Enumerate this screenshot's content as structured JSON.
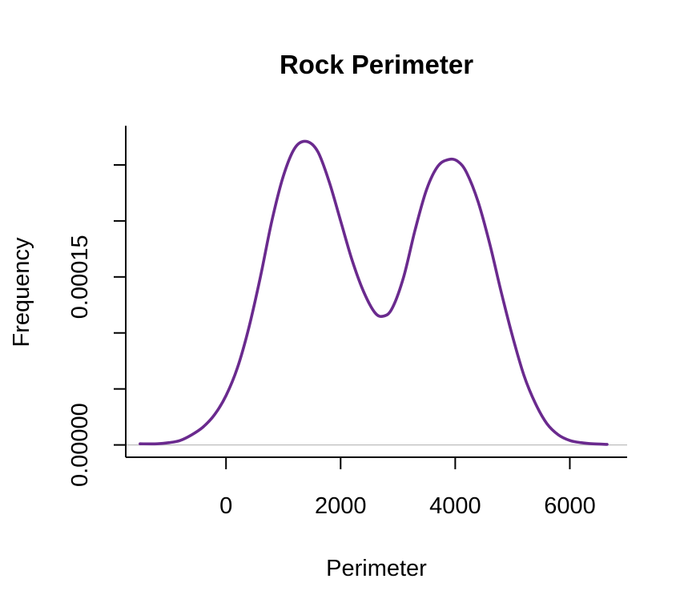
{
  "chart_data": {
    "type": "line",
    "title": "Rock Perimeter",
    "xlabel": "Perimeter",
    "ylabel": "Frequency",
    "xlim": [
      -1750,
      7000
    ],
    "ylim": [
      -1.1e-05,
      0.000285
    ],
    "x_ticks": [
      0,
      2000,
      4000,
      6000
    ],
    "x_tick_labels": [
      "0",
      "2000",
      "4000",
      "6000"
    ],
    "y_ticks": [
      0,
      5e-05,
      0.0001,
      0.00015,
      0.0002,
      0.00025
    ],
    "y_tick_labels": [
      "0.00000",
      "",
      "",
      "0.00015",
      "",
      ""
    ],
    "grid": false,
    "line_color": "#6a2a8e",
    "zero_line_color": "#bdbdbd",
    "series": [
      {
        "x": [
          -1500,
          -1200,
          -1000,
          -800,
          -600,
          -400,
          -200,
          0,
          200,
          400,
          600,
          800,
          1000,
          1200,
          1400,
          1600,
          1800,
          2000,
          2200,
          2400,
          2600,
          2750,
          2900,
          3100,
          3300,
          3500,
          3700,
          3900,
          4050,
          4200,
          4400,
          4600,
          4800,
          5000,
          5200,
          5400,
          5600,
          5800,
          6000,
          6200,
          6400,
          6650
        ],
        "y": [
          1e-06,
          1e-06,
          2e-06,
          4e-06,
          9e-06,
          1.6e-05,
          2.7e-05,
          4.4e-05,
          6.9e-05,
          0.000105,
          0.00015,
          0.0002,
          0.00024,
          0.000265,
          0.000271,
          0.000262,
          0.000235,
          0.0002,
          0.000165,
          0.000137,
          0.000118,
          0.000115,
          0.000122,
          0.00015,
          0.000192,
          0.000228,
          0.000249,
          0.000255,
          0.000253,
          0.000243,
          0.000217,
          0.00018,
          0.000137,
          9.7e-05,
          6.2e-05,
          3.7e-05,
          1.9e-05,
          9e-06,
          4e-06,
          2e-06,
          1e-06,
          5e-07
        ]
      }
    ]
  }
}
